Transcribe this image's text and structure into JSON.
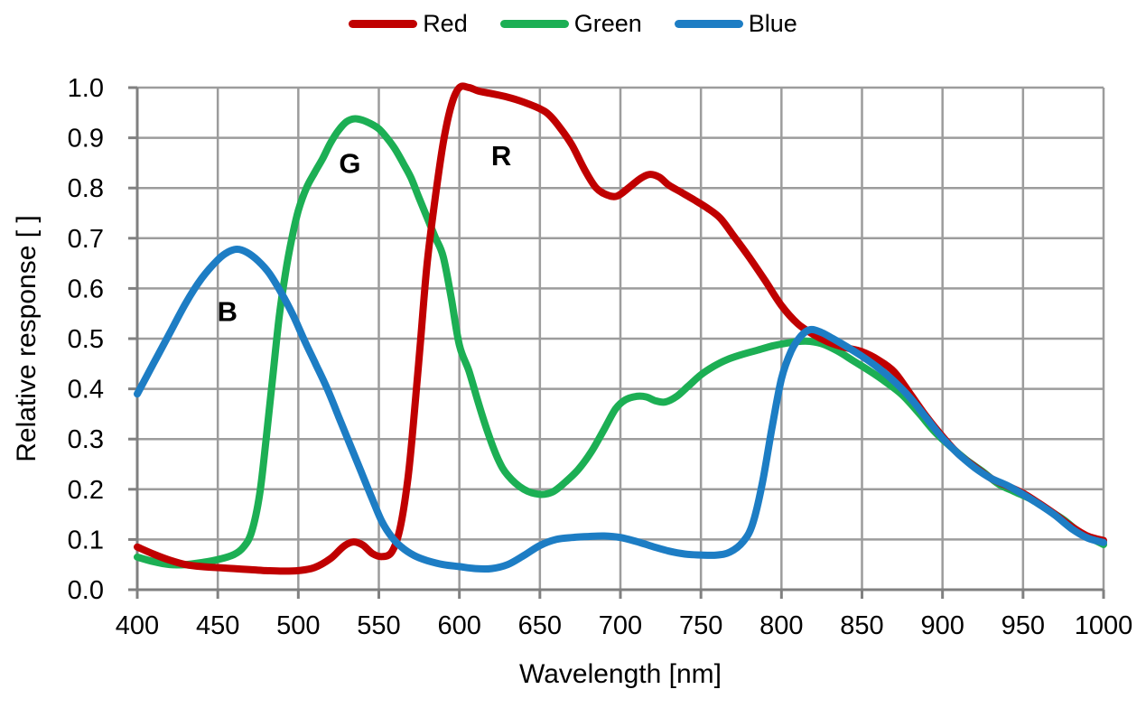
{
  "legend": {
    "items": [
      {
        "label": "Red",
        "color": "#C00000"
      },
      {
        "label": "Green",
        "color": "#1CAF54"
      },
      {
        "label": "Blue",
        "color": "#1D7DC4"
      }
    ]
  },
  "colors": {
    "grid": "#9C9C9C",
    "axis": "#808080",
    "text": "#000000",
    "background": "#FFFFFF"
  },
  "chart_data": {
    "type": "line",
    "title": "",
    "xlabel": "Wavelength [nm]",
    "ylabel": "Relative response [ ]",
    "xlim": [
      400,
      1000
    ],
    "ylim": [
      0.0,
      1.0
    ],
    "xticks": [
      400,
      450,
      500,
      550,
      600,
      650,
      700,
      750,
      800,
      850,
      900,
      950,
      1000
    ],
    "yticks": [
      0.0,
      0.1,
      0.2,
      0.3,
      0.4,
      0.5,
      0.6,
      0.7,
      0.8,
      0.9,
      1.0
    ],
    "grid": true,
    "legend_position": "top-center",
    "annotations": [
      {
        "text": "B",
        "x": 456,
        "y": 0.555
      },
      {
        "text": "G",
        "x": 532,
        "y": 0.85
      },
      {
        "text": "R",
        "x": 626,
        "y": 0.865
      }
    ],
    "series": [
      {
        "name": "Green",
        "color": "#1CAF54",
        "points": [
          [
            400,
            0.065
          ],
          [
            410,
            0.056
          ],
          [
            420,
            0.05
          ],
          [
            430,
            0.05
          ],
          [
            440,
            0.054
          ],
          [
            450,
            0.06
          ],
          [
            460,
            0.07
          ],
          [
            466,
            0.085
          ],
          [
            471,
            0.115
          ],
          [
            476,
            0.19
          ],
          [
            480,
            0.3
          ],
          [
            484,
            0.42
          ],
          [
            488,
            0.54
          ],
          [
            492,
            0.63
          ],
          [
            496,
            0.7
          ],
          [
            500,
            0.755
          ],
          [
            505,
            0.8
          ],
          [
            510,
            0.83
          ],
          [
            515,
            0.858
          ],
          [
            520,
            0.89
          ],
          [
            525,
            0.915
          ],
          [
            530,
            0.932
          ],
          [
            535,
            0.938
          ],
          [
            540,
            0.935
          ],
          [
            545,
            0.928
          ],
          [
            550,
            0.918
          ],
          [
            555,
            0.9
          ],
          [
            560,
            0.878
          ],
          [
            565,
            0.85
          ],
          [
            570,
            0.82
          ],
          [
            575,
            0.78
          ],
          [
            580,
            0.741
          ],
          [
            585,
            0.702
          ],
          [
            590,
            0.663
          ],
          [
            595,
            0.58
          ],
          [
            600,
            0.487
          ],
          [
            606,
            0.435
          ],
          [
            612,
            0.37
          ],
          [
            618,
            0.31
          ],
          [
            624,
            0.26
          ],
          [
            630,
            0.228
          ],
          [
            640,
            0.2
          ],
          [
            650,
            0.19
          ],
          [
            658,
            0.195
          ],
          [
            666,
            0.215
          ],
          [
            674,
            0.24
          ],
          [
            682,
            0.275
          ],
          [
            690,
            0.32
          ],
          [
            697,
            0.36
          ],
          [
            703,
            0.378
          ],
          [
            710,
            0.385
          ],
          [
            716,
            0.384
          ],
          [
            722,
            0.376
          ],
          [
            728,
            0.374
          ],
          [
            735,
            0.385
          ],
          [
            742,
            0.405
          ],
          [
            750,
            0.428
          ],
          [
            758,
            0.445
          ],
          [
            766,
            0.458
          ],
          [
            775,
            0.468
          ],
          [
            785,
            0.477
          ],
          [
            795,
            0.486
          ],
          [
            805,
            0.492
          ],
          [
            815,
            0.495
          ],
          [
            825,
            0.49
          ],
          [
            835,
            0.475
          ],
          [
            845,
            0.455
          ],
          [
            855,
            0.435
          ],
          [
            865,
            0.413
          ],
          [
            875,
            0.388
          ],
          [
            885,
            0.353
          ],
          [
            895,
            0.315
          ],
          [
            905,
            0.285
          ],
          [
            915,
            0.258
          ],
          [
            925,
            0.235
          ],
          [
            935,
            0.21
          ],
          [
            945,
            0.195
          ],
          [
            955,
            0.18
          ],
          [
            965,
            0.16
          ],
          [
            975,
            0.14
          ],
          [
            985,
            0.115
          ],
          [
            1000,
            0.09
          ]
        ]
      },
      {
        "name": "Red",
        "color": "#C00000",
        "points": [
          [
            400,
            0.085
          ],
          [
            410,
            0.071
          ],
          [
            420,
            0.059
          ],
          [
            430,
            0.05
          ],
          [
            440,
            0.046
          ],
          [
            450,
            0.044
          ],
          [
            460,
            0.042
          ],
          [
            470,
            0.04
          ],
          [
            480,
            0.038
          ],
          [
            490,
            0.037
          ],
          [
            500,
            0.038
          ],
          [
            510,
            0.044
          ],
          [
            520,
            0.062
          ],
          [
            528,
            0.086
          ],
          [
            534,
            0.095
          ],
          [
            540,
            0.089
          ],
          [
            546,
            0.072
          ],
          [
            552,
            0.066
          ],
          [
            558,
            0.075
          ],
          [
            563,
            0.12
          ],
          [
            568,
            0.22
          ],
          [
            572,
            0.35
          ],
          [
            576,
            0.5
          ],
          [
            580,
            0.65
          ],
          [
            585,
            0.78
          ],
          [
            590,
            0.89
          ],
          [
            595,
            0.965
          ],
          [
            600,
            1.0
          ],
          [
            606,
            1.0
          ],
          [
            612,
            0.993
          ],
          [
            620,
            0.988
          ],
          [
            630,
            0.981
          ],
          [
            640,
            0.971
          ],
          [
            650,
            0.958
          ],
          [
            656,
            0.945
          ],
          [
            663,
            0.918
          ],
          [
            670,
            0.885
          ],
          [
            678,
            0.835
          ],
          [
            685,
            0.8
          ],
          [
            692,
            0.786
          ],
          [
            698,
            0.784
          ],
          [
            705,
            0.8
          ],
          [
            712,
            0.818
          ],
          [
            718,
            0.827
          ],
          [
            724,
            0.822
          ],
          [
            730,
            0.806
          ],
          [
            738,
            0.791
          ],
          [
            746,
            0.776
          ],
          [
            754,
            0.76
          ],
          [
            762,
            0.74
          ],
          [
            770,
            0.706
          ],
          [
            780,
            0.662
          ],
          [
            790,
            0.615
          ],
          [
            800,
            0.566
          ],
          [
            810,
            0.53
          ],
          [
            820,
            0.508
          ],
          [
            830,
            0.492
          ],
          [
            840,
            0.482
          ],
          [
            850,
            0.474
          ],
          [
            860,
            0.458
          ],
          [
            870,
            0.434
          ],
          [
            880,
            0.39
          ],
          [
            890,
            0.345
          ],
          [
            900,
            0.305
          ],
          [
            910,
            0.27
          ],
          [
            920,
            0.245
          ],
          [
            930,
            0.222
          ],
          [
            940,
            0.207
          ],
          [
            950,
            0.192
          ],
          [
            960,
            0.172
          ],
          [
            970,
            0.15
          ],
          [
            980,
            0.126
          ],
          [
            990,
            0.107
          ],
          [
            1000,
            0.098
          ]
        ]
      },
      {
        "name": "Blue",
        "color": "#1D7DC4",
        "points": [
          [
            400,
            0.39
          ],
          [
            410,
            0.45
          ],
          [
            420,
            0.51
          ],
          [
            430,
            0.57
          ],
          [
            440,
            0.62
          ],
          [
            450,
            0.657
          ],
          [
            456,
            0.672
          ],
          [
            462,
            0.678
          ],
          [
            468,
            0.672
          ],
          [
            475,
            0.655
          ],
          [
            482,
            0.63
          ],
          [
            490,
            0.588
          ],
          [
            497,
            0.545
          ],
          [
            504,
            0.495
          ],
          [
            511,
            0.448
          ],
          [
            518,
            0.4
          ],
          [
            525,
            0.345
          ],
          [
            532,
            0.29
          ],
          [
            539,
            0.235
          ],
          [
            546,
            0.18
          ],
          [
            552,
            0.135
          ],
          [
            558,
            0.105
          ],
          [
            564,
            0.085
          ],
          [
            572,
            0.068
          ],
          [
            580,
            0.058
          ],
          [
            590,
            0.05
          ],
          [
            600,
            0.046
          ],
          [
            610,
            0.042
          ],
          [
            620,
            0.042
          ],
          [
            630,
            0.05
          ],
          [
            640,
            0.068
          ],
          [
            650,
            0.088
          ],
          [
            660,
            0.1
          ],
          [
            670,
            0.104
          ],
          [
            680,
            0.106
          ],
          [
            690,
            0.107
          ],
          [
            700,
            0.104
          ],
          [
            710,
            0.096
          ],
          [
            720,
            0.086
          ],
          [
            730,
            0.077
          ],
          [
            740,
            0.071
          ],
          [
            750,
            0.069
          ],
          [
            760,
            0.069
          ],
          [
            768,
            0.075
          ],
          [
            776,
            0.095
          ],
          [
            782,
            0.13
          ],
          [
            788,
            0.21
          ],
          [
            794,
            0.32
          ],
          [
            800,
            0.42
          ],
          [
            806,
            0.475
          ],
          [
            812,
            0.505
          ],
          [
            818,
            0.518
          ],
          [
            825,
            0.512
          ],
          [
            832,
            0.5
          ],
          [
            840,
            0.485
          ],
          [
            850,
            0.465
          ],
          [
            860,
            0.442
          ],
          [
            870,
            0.415
          ],
          [
            880,
            0.382
          ],
          [
            890,
            0.342
          ],
          [
            900,
            0.302
          ],
          [
            910,
            0.27
          ],
          [
            920,
            0.243
          ],
          [
            930,
            0.222
          ],
          [
            940,
            0.208
          ],
          [
            950,
            0.19
          ],
          [
            960,
            0.17
          ],
          [
            970,
            0.148
          ],
          [
            980,
            0.122
          ],
          [
            990,
            0.103
          ],
          [
            1000,
            0.094
          ]
        ]
      }
    ]
  }
}
